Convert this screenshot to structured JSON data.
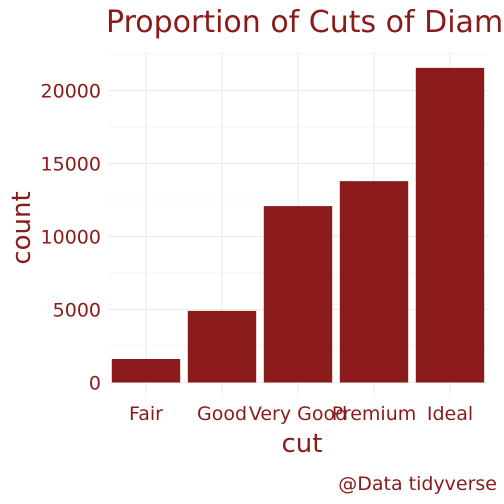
{
  "chart_data": {
    "type": "bar",
    "title": "Proportion of Cuts of Diam",
    "xlabel": "cut",
    "ylabel": "count",
    "categories": [
      "Fair",
      "Good",
      "Very Good",
      "Premium",
      "Ideal"
    ],
    "values": [
      1610,
      4906,
      12082,
      13791,
      21551
    ],
    "ylim": [
      0,
      22500
    ],
    "yticks": [
      0,
      5000,
      10000,
      15000,
      20000
    ],
    "ytick_labels": [
      "0",
      "5000",
      "10000",
      "15000",
      "20000"
    ],
    "grid": true,
    "legend": "none"
  },
  "caption": "@Data tidyverse",
  "colors": {
    "bar": "#8b1a1a",
    "text": "#8b1a1a",
    "grid": "#ebebeb",
    "background": "#ffffff"
  }
}
